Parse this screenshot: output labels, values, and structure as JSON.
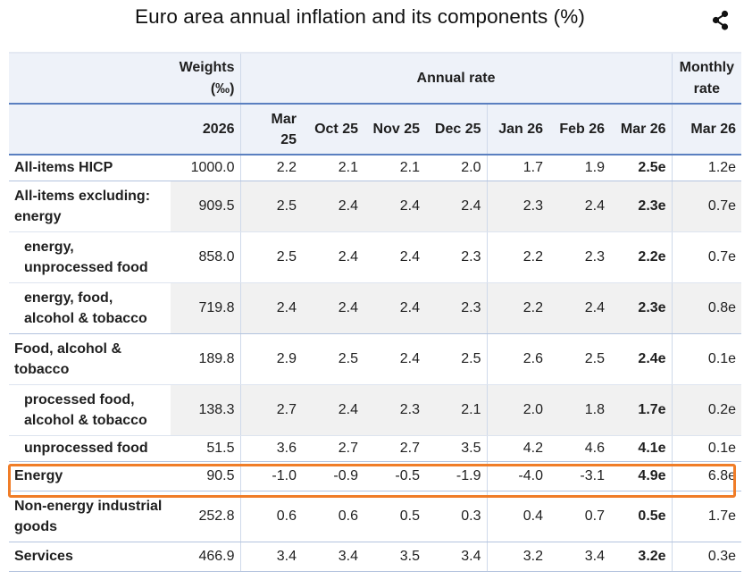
{
  "title": "Euro area annual inflation and its components (%)",
  "header": {
    "weights_label": "Weights (‰)",
    "annual_rate_label": "Annual rate",
    "monthly_rate_label": "Monthly rate",
    "weights_year": "2026",
    "periods": [
      "Mar 25",
      "Oct 25",
      "Nov 25",
      "Dec 25",
      "Jan 26",
      "Feb 26",
      "Mar 26"
    ],
    "monthly_period": "Mar 26"
  },
  "rows": [
    {
      "label": "All-items HICP",
      "indent": false,
      "weight": "1000.0",
      "values": [
        "2.2",
        "2.1",
        "2.1",
        "2.0",
        "1.7",
        "1.9",
        "2.5e"
      ],
      "monthly": "1.2e"
    },
    {
      "label": "All-items excluding: energy",
      "indent": false,
      "weight": "909.5",
      "values": [
        "2.5",
        "2.4",
        "2.4",
        "2.4",
        "2.3",
        "2.4",
        "2.3e"
      ],
      "monthly": "0.7e"
    },
    {
      "label": "energy, unprocessed food",
      "indent": true,
      "weight": "858.0",
      "values": [
        "2.5",
        "2.4",
        "2.4",
        "2.3",
        "2.2",
        "2.3",
        "2.2e"
      ],
      "monthly": "0.7e"
    },
    {
      "label": "energy, food, alcohol & tobacco",
      "indent": true,
      "weight": "719.8",
      "values": [
        "2.4",
        "2.4",
        "2.4",
        "2.3",
        "2.2",
        "2.4",
        "2.3e"
      ],
      "monthly": "0.8e"
    },
    {
      "label": "Food, alcohol & tobacco",
      "indent": false,
      "weight": "189.8",
      "values": [
        "2.9",
        "2.5",
        "2.4",
        "2.5",
        "2.6",
        "2.5",
        "2.4e"
      ],
      "monthly": "0.1e"
    },
    {
      "label": "processed food, alcohol & tobacco",
      "indent": true,
      "weight": "138.3",
      "values": [
        "2.7",
        "2.4",
        "2.3",
        "2.1",
        "2.0",
        "1.8",
        "1.7e"
      ],
      "monthly": "0.2e"
    },
    {
      "label": "unprocessed food",
      "indent": true,
      "weight": "51.5",
      "values": [
        "3.6",
        "2.7",
        "2.7",
        "3.5",
        "4.2",
        "4.6",
        "4.1e"
      ],
      "monthly": "0.1e"
    },
    {
      "label": "Energy",
      "indent": false,
      "weight": "90.5",
      "values": [
        "-1.0",
        "-0.9",
        "-0.5",
        "-1.9",
        "-4.0",
        "-3.1",
        "4.9e"
      ],
      "monthly": "6.8e"
    },
    {
      "label": "Non-energy industrial goods",
      "indent": false,
      "weight": "252.8",
      "values": [
        "0.6",
        "0.6",
        "0.5",
        "0.3",
        "0.4",
        "0.7",
        "0.5e"
      ],
      "monthly": "1.7e"
    },
    {
      "label": "Services",
      "indent": false,
      "weight": "466.9",
      "values": [
        "3.4",
        "3.4",
        "3.5",
        "3.4",
        "3.2",
        "3.4",
        "3.2e"
      ],
      "monthly": "0.3e"
    }
  ],
  "icons": {
    "share": "share-icon"
  },
  "colors": {
    "highlight": "#f07d28",
    "rule": "#5a7fc0",
    "header_bg": "#eef2f9",
    "stripe": "#f1f1f1"
  }
}
